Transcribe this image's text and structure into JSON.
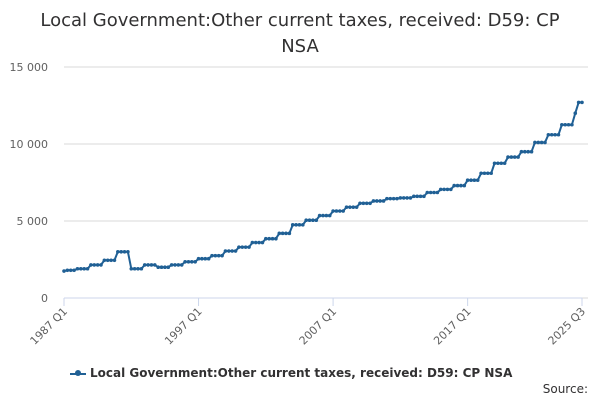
{
  "chart_data": {
    "type": "line",
    "title_lines": [
      "Local Government:Other current taxes, received: D59: CP",
      "NSA"
    ],
    "series": [
      {
        "name": "Local Government:Other current taxes, received: D59: CP NSA",
        "color": "#206095",
        "annual_levels": [
          {
            "year": 1987,
            "value": 1800
          },
          {
            "year": 1988,
            "value": 1900
          },
          {
            "year": 1989,
            "value": 2150
          },
          {
            "year": 1990,
            "value": 2450
          },
          {
            "year": 1991,
            "value": 3000
          },
          {
            "year": 1992,
            "value": 1900
          },
          {
            "year": 1993,
            "value": 2150
          },
          {
            "year": 1994,
            "value": 2000
          },
          {
            "year": 1995,
            "value": 2150
          },
          {
            "year": 1996,
            "value": 2350
          },
          {
            "year": 1997,
            "value": 2550
          },
          {
            "year": 1998,
            "value": 2750
          },
          {
            "year": 1999,
            "value": 3050
          },
          {
            "year": 2000,
            "value": 3300
          },
          {
            "year": 2001,
            "value": 3600
          },
          {
            "year": 2002,
            "value": 3850
          },
          {
            "year": 2003,
            "value": 4200
          },
          {
            "year": 2004,
            "value": 4750
          },
          {
            "year": 2005,
            "value": 5050
          },
          {
            "year": 2006,
            "value": 5350
          },
          {
            "year": 2007,
            "value": 5650
          },
          {
            "year": 2008,
            "value": 5900
          },
          {
            "year": 2009,
            "value": 6150
          },
          {
            "year": 2010,
            "value": 6300
          },
          {
            "year": 2011,
            "value": 6450
          },
          {
            "year": 2012,
            "value": 6500
          },
          {
            "year": 2013,
            "value": 6600
          },
          {
            "year": 2014,
            "value": 6850
          },
          {
            "year": 2015,
            "value": 7050
          },
          {
            "year": 2016,
            "value": 7300
          },
          {
            "year": 2017,
            "value": 7650
          },
          {
            "year": 2018,
            "value": 8100
          },
          {
            "year": 2019,
            "value": 8750
          },
          {
            "year": 2020,
            "value": 9150
          },
          {
            "year": 2021,
            "value": 9500
          },
          {
            "year": 2022,
            "value": 10100
          },
          {
            "year": 2023,
            "value": 10600
          },
          {
            "year": 2024,
            "value": 11250
          },
          {
            "year": 2025,
            "value": 12000
          }
        ],
        "quarter_overrides": [
          {
            "year": 1987,
            "q": 1,
            "value": 1750
          },
          {
            "year": 2025,
            "q": 2,
            "value": 12700
          },
          {
            "year": 2025,
            "q": 3,
            "value": 12700
          }
        ]
      }
    ],
    "x_start": {
      "year": 1987,
      "q": 1
    },
    "x_end": {
      "year": 2025,
      "q": 3
    },
    "x_ticks": [
      "1987 Q1",
      "1997 Q1",
      "2007 Q1",
      "2017 Q1",
      "2025 Q3"
    ],
    "y_ticks": [
      0,
      5000,
      10000,
      15000
    ],
    "y_tick_labels": [
      "0",
      "5 000",
      "10 000",
      "15 000"
    ],
    "ylim": [
      0,
      15000
    ],
    "legend_position": "bottom-center",
    "grid": true
  },
  "footer": {
    "source_label": "Source:"
  }
}
